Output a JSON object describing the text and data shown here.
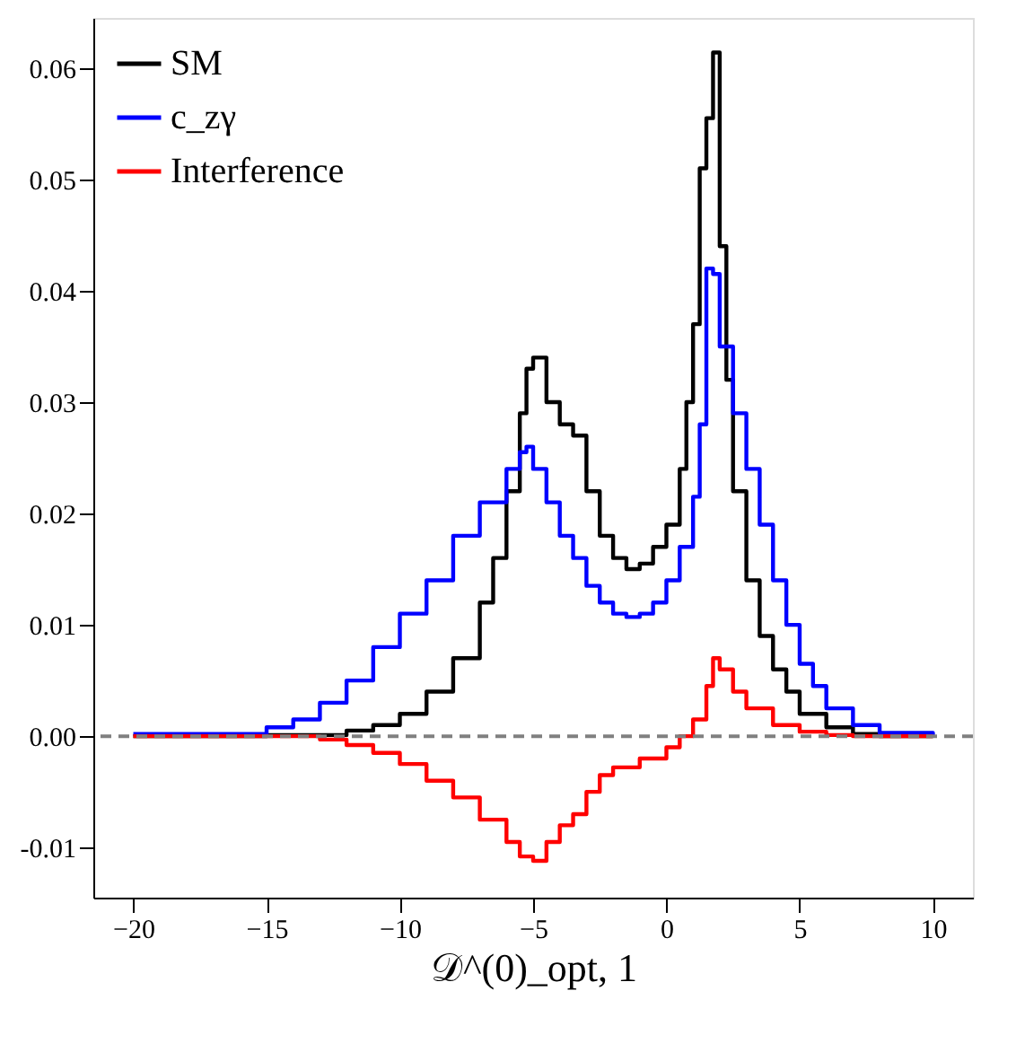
{
  "chart_data": {
    "type": "step",
    "xlabel": "𝒟^(0)_opt, 1",
    "xlim": [
      -21.5,
      11.5
    ],
    "xticks": [
      -20,
      -15,
      -10,
      -5,
      0,
      5,
      10
    ],
    "ylim": [
      -0.0145,
      0.0645
    ],
    "yticks": [
      {
        "value": -0.01,
        "label": "-0.01"
      },
      {
        "value": 0,
        "label": "0.00"
      },
      {
        "value": 0.01,
        "label": "0.01"
      },
      {
        "value": 0.02,
        "label": "0.02"
      },
      {
        "value": 0.03,
        "label": "0.03"
      },
      {
        "value": 0.04,
        "label": "0.04"
      },
      {
        "value": 0.05,
        "label": "0.05"
      },
      {
        "value": 0.06,
        "label": "0.06"
      }
    ],
    "grid": false,
    "legend": "top left",
    "line_style": "solid",
    "ref_lines": [
      {
        "axis": "y",
        "value": 0,
        "color": "#808080",
        "line_style": "dashed"
      }
    ],
    "series": [
      {
        "name": "SM",
        "color": "#000000",
        "x": [
          -20,
          -15,
          -12,
          -11,
          -10,
          -9,
          -8,
          -7,
          -6.5,
          -6,
          -5.5,
          -5.25,
          -5,
          -4.5,
          -4,
          -3.5,
          -3,
          -2.5,
          -2,
          -1.5,
          -1,
          -0.5,
          0,
          0.5,
          0.75,
          1,
          1.25,
          1.5,
          1.75,
          2,
          2.25,
          2.5,
          3,
          3.5,
          4,
          4.5,
          5,
          6,
          7,
          8,
          10
        ],
        "values": [
          0,
          0.0001,
          0.0005,
          0.001,
          0.002,
          0.004,
          0.007,
          0.012,
          0.016,
          0.022,
          0.029,
          0.033,
          0.034,
          0.03,
          0.028,
          0.027,
          0.022,
          0.018,
          0.016,
          0.015,
          0.0155,
          0.017,
          0.019,
          0.024,
          0.03,
          0.037,
          0.051,
          0.0555,
          0.0614,
          0.044,
          0.032,
          0.022,
          0.014,
          0.009,
          0.006,
          0.004,
          0.002,
          0.0008,
          0.0002,
          0,
          0
        ]
      },
      {
        "name": "c_zγ",
        "color": "#0000ff",
        "x": [
          -20,
          -15,
          -14,
          -13,
          -12,
          -11,
          -10,
          -9,
          -8,
          -7,
          -6,
          -5.5,
          -5.25,
          -5,
          -4.5,
          -4,
          -3.5,
          -3,
          -2.5,
          -2,
          -1.5,
          -1,
          -0.5,
          0,
          0.5,
          1,
          1.25,
          1.5,
          1.75,
          2,
          2.5,
          3,
          3.5,
          4,
          4.5,
          5,
          5.5,
          6,
          7,
          8,
          10
        ],
        "values": [
          0.0002,
          0.0008,
          0.0015,
          0.003,
          0.005,
          0.008,
          0.011,
          0.014,
          0.018,
          0.021,
          0.024,
          0.0255,
          0.026,
          0.024,
          0.021,
          0.018,
          0.016,
          0.0135,
          0.012,
          0.011,
          0.0107,
          0.011,
          0.012,
          0.014,
          0.017,
          0.0215,
          0.028,
          0.042,
          0.0415,
          0.035,
          0.029,
          0.024,
          0.019,
          0.014,
          0.01,
          0.0065,
          0.0045,
          0.0025,
          0.001,
          0.0003,
          0
        ]
      },
      {
        "name": "Interference",
        "color": "#ff0000",
        "x": [
          -20,
          -14,
          -13,
          -12,
          -11,
          -10,
          -9,
          -8,
          -7,
          -6,
          -5.5,
          -5,
          -4.5,
          -4,
          -3.5,
          -3,
          -2.5,
          -2,
          -1,
          0,
          0.5,
          1,
          1.5,
          1.75,
          2,
          2.5,
          3,
          4,
          5,
          6,
          7,
          10
        ],
        "values": [
          0,
          0,
          -0.0003,
          -0.0008,
          -0.0015,
          -0.0025,
          -0.004,
          -0.0055,
          -0.0075,
          -0.0095,
          -0.0108,
          -0.0112,
          -0.0095,
          -0.008,
          -0.007,
          -0.005,
          -0.0035,
          -0.0028,
          -0.002,
          -0.001,
          0,
          0.0015,
          0.0045,
          0.007,
          0.006,
          0.004,
          0.0025,
          0.001,
          0.0004,
          0.0001,
          0,
          0
        ]
      }
    ]
  }
}
